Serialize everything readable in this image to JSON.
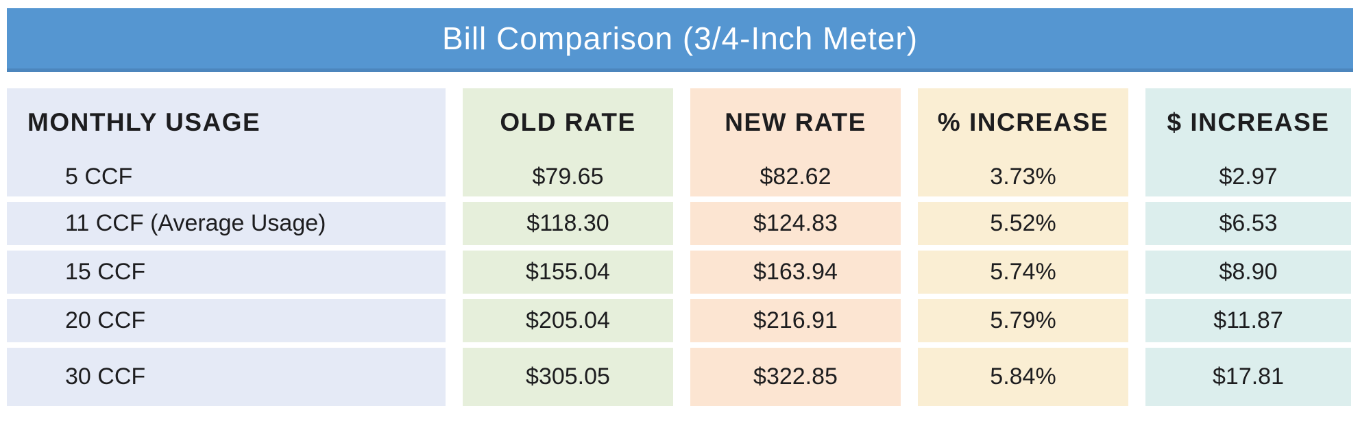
{
  "title": "Bill Comparison (3/4-Inch Meter)",
  "colors": {
    "title_bar": "#5596d1",
    "title_bar_border": "#4c86bd",
    "title_text": "#ffffff",
    "usage_column_bg": "#e5eaf6",
    "old_rate_column_bg": "#e6efdb",
    "new_rate_column_bg": "#fce5d2",
    "pct_increase_column_bg": "#faeed3",
    "dollar_increase_column_bg": "#dceeed",
    "body_text": "#1d1d1f"
  },
  "chart_data": {
    "type": "table",
    "title": "Bill Comparison (3/4-Inch Meter)",
    "columns": [
      "MONTHLY USAGE",
      "OLD RATE",
      "NEW RATE",
      "% INCREASE",
      "$ INCREASE"
    ],
    "rows": [
      [
        "5 CCF",
        "$79.65",
        "$82.62",
        "3.73%",
        "$2.97"
      ],
      [
        "11 CCF (Average Usage)",
        "$118.30",
        "$124.83",
        "5.52%",
        "$6.53"
      ],
      [
        "15 CCF",
        "$155.04",
        "$163.94",
        "5.74%",
        "$8.90"
      ],
      [
        "20 CCF",
        "$205.04",
        "$216.91",
        "5.79%",
        "$11.87"
      ],
      [
        "30 CCF",
        "$305.05",
        "$322.85",
        "5.84%",
        "$17.81"
      ]
    ],
    "numeric": {
      "usage_ccf": [
        5,
        11,
        15,
        20,
        30
      ],
      "old_rate_usd": [
        79.65,
        118.3,
        155.04,
        205.04,
        305.05
      ],
      "new_rate_usd": [
        82.62,
        124.83,
        163.94,
        216.91,
        322.85
      ],
      "pct_increase": [
        3.73,
        5.52,
        5.74,
        5.79,
        5.84
      ],
      "usd_increase": [
        2.97,
        6.53,
        8.9,
        11.87,
        17.81
      ]
    },
    "notes": "Row for 11 CCF is flagged as average usage"
  }
}
